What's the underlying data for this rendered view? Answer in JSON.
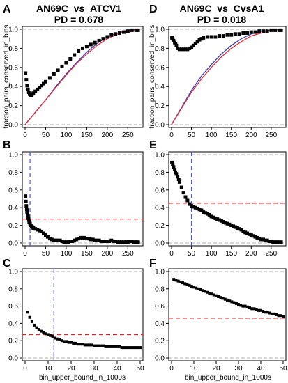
{
  "labels": {
    "left_title": "AN69C_vs_ATCV1",
    "left_pd": "PD = 0.678",
    "right_title": "AN69C_vs_CvsA1",
    "right_pd": "PD = 0.018",
    "ylabel_top": "fraction_pairs_conserved_in_bins",
    "xlabel_bottom": "bin_upper_bound_in_1000s"
  },
  "colors": {
    "points": "#000000",
    "blue_line": "#3a3fb0",
    "red_line": "#e0303a",
    "red_dash": "#e8202a",
    "blue_dash": "#4a5ad8",
    "gray_dash": "#b0b0b0"
  },
  "chart_data": [
    {
      "panel": "A",
      "type": "line",
      "title": "AN69C_vs_ATCV1",
      "subtitle": "PD = 0.678",
      "xlabel": "",
      "ylabel": "fraction_pairs_conserved_in_bins",
      "xlim": [
        0,
        280
      ],
      "ylim": [
        0,
        1.0
      ],
      "xticks": [
        0,
        50,
        100,
        150,
        200,
        250
      ],
      "yticks": [
        0.0,
        0.2,
        0.4,
        0.6,
        0.8,
        1.0
      ],
      "hlines": [
        0,
        1
      ],
      "points": {
        "x": [
          1,
          3,
          5,
          7,
          9,
          11,
          13,
          15,
          17,
          20,
          25,
          30,
          35,
          40,
          45,
          50,
          60,
          70,
          80,
          90,
          100,
          110,
          120,
          130,
          140,
          150,
          160,
          170,
          180,
          190,
          200,
          210,
          220,
          230,
          240,
          250,
          260,
          270,
          275
        ],
        "y": [
          0.54,
          0.47,
          0.41,
          0.37,
          0.34,
          0.32,
          0.31,
          0.31,
          0.32,
          0.33,
          0.35,
          0.37,
          0.39,
          0.41,
          0.43,
          0.45,
          0.49,
          0.53,
          0.57,
          0.61,
          0.65,
          0.69,
          0.73,
          0.77,
          0.8,
          0.82,
          0.84,
          0.86,
          0.88,
          0.9,
          0.92,
          0.94,
          0.95,
          0.96,
          0.97,
          0.98,
          0.99,
          0.99,
          0.99
        ]
      },
      "series": [
        {
          "color": "blue",
          "x": [
            0,
            25,
            50,
            75,
            100,
            125,
            150,
            175,
            200,
            225,
            250,
            275
          ],
          "y": [
            0.0,
            0.13,
            0.26,
            0.4,
            0.53,
            0.65,
            0.76,
            0.85,
            0.92,
            0.96,
            0.99,
            1.0
          ]
        },
        {
          "color": "red",
          "x": [
            0,
            25,
            50,
            75,
            100,
            125,
            150,
            175,
            200,
            225,
            250,
            275
          ],
          "y": [
            0.0,
            0.13,
            0.26,
            0.39,
            0.52,
            0.64,
            0.74,
            0.83,
            0.9,
            0.95,
            0.98,
            1.0
          ]
        }
      ]
    },
    {
      "panel": "D",
      "type": "line",
      "title": "AN69C_vs_CvsA1",
      "subtitle": "PD = 0.018",
      "xlabel": "",
      "ylabel": "fraction_pairs_conserved_in_bins",
      "xlim": [
        0,
        280
      ],
      "ylim": [
        0,
        1.0
      ],
      "xticks": [
        0,
        50,
        100,
        150,
        200,
        250
      ],
      "yticks": [
        0.0,
        0.2,
        0.4,
        0.6,
        0.8,
        1.0
      ],
      "hlines": [
        0,
        1
      ],
      "points": {
        "x": [
          1,
          3,
          5,
          8,
          10,
          12,
          15,
          20,
          25,
          30,
          35,
          40,
          45,
          50,
          55,
          60,
          65,
          70,
          75,
          80,
          90,
          100,
          110,
          120,
          130,
          140,
          150,
          160,
          170,
          180,
          190,
          200,
          210,
          220,
          230,
          240,
          250,
          260,
          270,
          275
        ],
        "y": [
          0.91,
          0.9,
          0.88,
          0.86,
          0.85,
          0.83,
          0.8,
          0.79,
          0.79,
          0.79,
          0.79,
          0.79,
          0.8,
          0.81,
          0.83,
          0.85,
          0.87,
          0.89,
          0.9,
          0.91,
          0.92,
          0.92,
          0.92,
          0.93,
          0.93,
          0.94,
          0.94,
          0.95,
          0.95,
          0.96,
          0.96,
          0.97,
          0.97,
          0.98,
          0.98,
          0.98,
          0.99,
          0.99,
          0.99,
          0.99
        ]
      },
      "series": [
        {
          "color": "blue",
          "x": [
            0,
            25,
            50,
            75,
            100,
            125,
            150,
            175,
            200,
            225,
            250,
            275
          ],
          "y": [
            0.0,
            0.18,
            0.36,
            0.51,
            0.63,
            0.74,
            0.83,
            0.9,
            0.95,
            0.98,
            0.99,
            1.0
          ]
        },
        {
          "color": "red",
          "x": [
            0,
            25,
            50,
            75,
            100,
            125,
            150,
            175,
            200,
            225,
            250,
            275
          ],
          "y": [
            0.0,
            0.17,
            0.34,
            0.48,
            0.6,
            0.71,
            0.8,
            0.87,
            0.93,
            0.96,
            0.99,
            1.0
          ]
        }
      ]
    },
    {
      "panel": "B",
      "type": "scatter",
      "xlabel": "",
      "ylabel": "",
      "xlim": [
        0,
        280
      ],
      "ylim": [
        0,
        1.0
      ],
      "xticks": [
        0,
        50,
        100,
        150,
        200,
        250
      ],
      "yticks": [
        0.0,
        0.2,
        0.4,
        0.6,
        0.8,
        1.0
      ],
      "hlines": [
        0,
        1
      ],
      "red_hline": 0.27,
      "blue_vline": 12,
      "points": {
        "x": [
          1,
          2,
          3,
          4,
          5,
          6,
          7,
          8,
          9,
          10,
          12,
          14,
          16,
          18,
          20,
          25,
          30,
          35,
          40,
          45,
          50,
          55,
          60,
          65,
          70,
          75,
          80,
          85,
          90,
          95,
          100,
          105,
          110,
          115,
          120,
          125,
          130,
          135,
          140,
          145,
          150,
          155,
          160,
          165,
          170,
          175,
          180,
          185,
          190,
          195,
          200,
          205,
          210,
          215,
          220,
          225,
          230,
          235,
          240,
          245,
          250,
          255,
          260,
          265,
          270,
          275
        ],
        "y": [
          0.53,
          0.47,
          0.42,
          0.38,
          0.35,
          0.32,
          0.3,
          0.28,
          0.26,
          0.24,
          0.22,
          0.2,
          0.19,
          0.18,
          0.17,
          0.16,
          0.15,
          0.14,
          0.13,
          0.11,
          0.09,
          0.07,
          0.05,
          0.04,
          0.03,
          0.03,
          0.03,
          0.03,
          0.02,
          0.01,
          0.01,
          0.01,
          0.02,
          0.02,
          0.03,
          0.04,
          0.05,
          0.06,
          0.06,
          0.06,
          0.05,
          0.05,
          0.04,
          0.04,
          0.03,
          0.03,
          0.03,
          0.02,
          0.02,
          0.02,
          0.02,
          0.02,
          0.03,
          0.02,
          0.02,
          0.01,
          0.01,
          0.01,
          0.01,
          0.01,
          0.01,
          0.02,
          0.02,
          0.01,
          0.01,
          0.01
        ]
      }
    },
    {
      "panel": "E",
      "type": "scatter",
      "xlabel": "",
      "ylabel": "",
      "xlim": [
        0,
        280
      ],
      "ylim": [
        0,
        1.0
      ],
      "xticks": [
        0,
        50,
        100,
        150,
        200,
        250
      ],
      "yticks": [
        0.0,
        0.2,
        0.4,
        0.6,
        0.8,
        1.0
      ],
      "hlines": [
        0,
        1
      ],
      "red_hline": 0.45,
      "blue_vline": 50,
      "points": {
        "x": [
          1,
          3,
          5,
          8,
          10,
          12,
          15,
          18,
          20,
          25,
          30,
          35,
          40,
          45,
          50,
          55,
          60,
          65,
          70,
          75,
          80,
          85,
          90,
          95,
          100,
          105,
          110,
          115,
          120,
          125,
          130,
          135,
          140,
          145,
          150,
          155,
          160,
          165,
          170,
          175,
          180,
          185,
          190,
          195,
          200,
          205,
          210,
          215,
          220,
          225,
          230,
          235,
          240,
          245,
          250,
          255,
          260,
          265,
          270,
          275
        ],
        "y": [
          0.91,
          0.89,
          0.86,
          0.83,
          0.8,
          0.78,
          0.75,
          0.72,
          0.69,
          0.63,
          0.57,
          0.52,
          0.48,
          0.44,
          0.42,
          0.41,
          0.4,
          0.39,
          0.38,
          0.37,
          0.35,
          0.34,
          0.33,
          0.32,
          0.3,
          0.29,
          0.28,
          0.27,
          0.26,
          0.25,
          0.24,
          0.23,
          0.22,
          0.21,
          0.2,
          0.19,
          0.18,
          0.17,
          0.16,
          0.15,
          0.13,
          0.12,
          0.11,
          0.1,
          0.09,
          0.08,
          0.07,
          0.06,
          0.05,
          0.04,
          0.04,
          0.03,
          0.03,
          0.02,
          0.02,
          0.01,
          0.01,
          0.01,
          0.01,
          0.01
        ]
      }
    },
    {
      "panel": "C",
      "type": "scatter",
      "xlabel": "bin_upper_bound_in_1000s",
      "ylabel": "",
      "xlim": [
        0,
        50
      ],
      "ylim": [
        0,
        1.0
      ],
      "xticks": [
        0,
        10,
        20,
        30,
        40,
        50
      ],
      "yticks": [
        0.0,
        0.2,
        0.4,
        0.6,
        0.8,
        1.0
      ],
      "hlines": [
        0,
        1
      ],
      "red_hline": 0.27,
      "blue_vline": 12.5,
      "points": {
        "x": [
          1,
          2,
          3,
          4,
          5,
          6,
          7,
          8,
          9,
          10,
          11,
          12,
          13,
          14,
          15,
          16,
          17,
          18,
          19,
          20,
          21,
          22,
          23,
          24,
          25,
          26,
          27,
          28,
          29,
          30,
          31,
          32,
          33,
          34,
          35,
          36,
          37,
          38,
          39,
          40,
          41,
          42,
          43,
          44,
          45,
          46,
          47,
          48,
          49,
          50
        ],
        "y": [
          0.53,
          0.47,
          0.42,
          0.38,
          0.35,
          0.33,
          0.31,
          0.29,
          0.28,
          0.27,
          0.26,
          0.25,
          0.23,
          0.22,
          0.21,
          0.2,
          0.19,
          0.19,
          0.18,
          0.18,
          0.17,
          0.17,
          0.16,
          0.16,
          0.16,
          0.15,
          0.15,
          0.15,
          0.15,
          0.14,
          0.14,
          0.14,
          0.14,
          0.14,
          0.13,
          0.13,
          0.13,
          0.13,
          0.13,
          0.13,
          0.13,
          0.12,
          0.12,
          0.12,
          0.12,
          0.12,
          0.12,
          0.12,
          0.12,
          0.12
        ]
      }
    },
    {
      "panel": "F",
      "type": "scatter",
      "xlabel": "bin_upper_bound_in_1000s",
      "ylabel": "",
      "xlim": [
        0,
        50
      ],
      "ylim": [
        0,
        1.0
      ],
      "xticks": [
        0,
        10,
        20,
        30,
        40,
        50
      ],
      "yticks": [
        0.0,
        0.2,
        0.4,
        0.6,
        0.8,
        1.0
      ],
      "hlines": [
        0,
        1
      ],
      "red_hline": 0.46,
      "points": {
        "x": [
          1,
          2,
          3,
          4,
          5,
          6,
          7,
          8,
          9,
          10,
          11,
          12,
          13,
          14,
          15,
          16,
          17,
          18,
          19,
          20,
          21,
          22,
          23,
          24,
          25,
          26,
          27,
          28,
          29,
          30,
          31,
          32,
          33,
          34,
          35,
          36,
          37,
          38,
          39,
          40,
          41,
          42,
          43,
          44,
          45,
          46,
          47,
          48,
          49,
          50
        ],
        "y": [
          0.91,
          0.9,
          0.89,
          0.88,
          0.87,
          0.86,
          0.85,
          0.84,
          0.83,
          0.82,
          0.81,
          0.8,
          0.79,
          0.78,
          0.77,
          0.76,
          0.75,
          0.74,
          0.73,
          0.72,
          0.71,
          0.7,
          0.69,
          0.68,
          0.67,
          0.66,
          0.65,
          0.64,
          0.63,
          0.62,
          0.61,
          0.6,
          0.6,
          0.59,
          0.58,
          0.57,
          0.57,
          0.56,
          0.55,
          0.55,
          0.54,
          0.53,
          0.53,
          0.52,
          0.51,
          0.51,
          0.5,
          0.49,
          0.49,
          0.48
        ]
      }
    }
  ]
}
